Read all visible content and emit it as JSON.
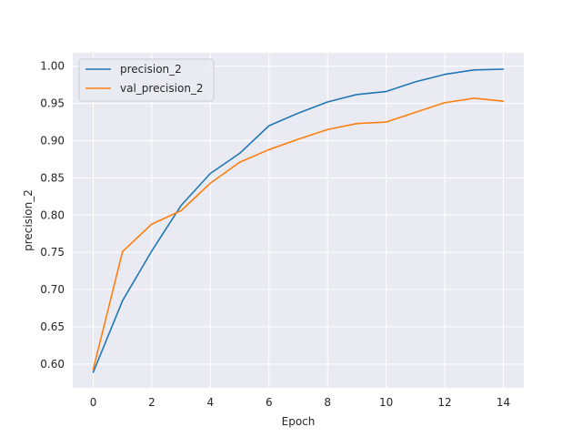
{
  "chart_data": {
    "type": "line",
    "title": "",
    "xlabel": "Epoch",
    "ylabel": "precision_2",
    "xlim": [
      -0.7,
      14.7
    ],
    "ylim": [
      0.568,
      1.018
    ],
    "xticks": [
      0,
      2,
      4,
      6,
      8,
      10,
      12,
      14
    ],
    "yticks": [
      0.6,
      0.65,
      0.7,
      0.75,
      0.8,
      0.85,
      0.9,
      0.95,
      1.0
    ],
    "xtick_labels": [
      "0",
      "2",
      "4",
      "6",
      "8",
      "10",
      "12",
      "14"
    ],
    "ytick_labels": [
      "0.60",
      "0.65",
      "0.70",
      "0.75",
      "0.80",
      "0.85",
      "0.90",
      "0.95",
      "1.00"
    ],
    "grid": true,
    "legend_position": "top-left",
    "x": [
      0,
      1,
      2,
      3,
      4,
      5,
      6,
      7,
      8,
      9,
      10,
      11,
      12,
      13,
      14
    ],
    "series": [
      {
        "name": "precision_2",
        "color": "#1f77b4",
        "values": [
          0.589,
          0.685,
          0.752,
          0.813,
          0.856,
          0.883,
          0.92,
          0.937,
          0.952,
          0.962,
          0.966,
          0.979,
          0.989,
          0.995,
          0.996
        ]
      },
      {
        "name": "val_precision_2",
        "color": "#ff7f0e",
        "values": [
          0.593,
          0.751,
          0.788,
          0.806,
          0.843,
          0.871,
          0.888,
          0.902,
          0.915,
          0.923,
          0.925,
          0.938,
          0.951,
          0.957,
          0.953
        ]
      }
    ],
    "colors": {
      "plot_bg": "#eaeaf2",
      "grid": "#ffffff",
      "text": "#262626"
    }
  }
}
